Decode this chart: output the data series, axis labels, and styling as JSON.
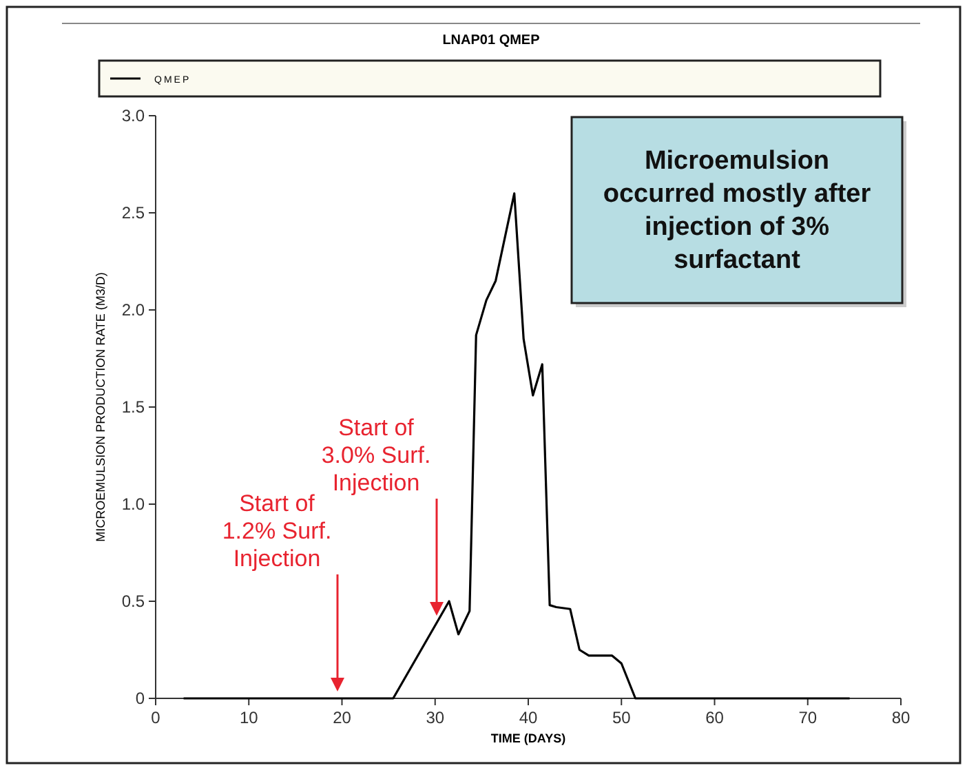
{
  "chart_data": {
    "type": "line",
    "title": "LNAP01 QMEP",
    "xlabel": "TIME (DAYS)",
    "ylabel": "MICROEMULSION PRODUCTION RATE (M3/D)",
    "xlim": [
      0,
      80
    ],
    "xticks": [
      0,
      10,
      20,
      30,
      40,
      50,
      60,
      70,
      80
    ],
    "ylim": [
      0,
      3
    ],
    "yticks": [
      0,
      0.5,
      {
        "value": 1,
        "label": "1.0"
      },
      1.5,
      {
        "value": 2,
        "label": "2.0"
      },
      2.5,
      {
        "value": 3,
        "label": "3.0"
      }
    ],
    "legend": "top",
    "grid": false,
    "series": [
      {
        "name": "QMEP",
        "color": "#000000",
        "x": [
          3,
          25.5,
          31.5,
          32.5,
          33.7,
          34.4,
          35.5,
          36.5,
          38.5,
          39.5,
          40.5,
          41.5,
          42.3,
          43,
          44.5,
          45.5,
          46.5,
          49,
          50,
          51.5,
          74.5
        ],
        "values": [
          0,
          0,
          0.5,
          0.33,
          0.45,
          1.87,
          2.05,
          2.15,
          2.6,
          1.85,
          1.56,
          1.72,
          0.48,
          0.47,
          0.46,
          0.25,
          0.22,
          0.22,
          0.18,
          0,
          0
        ]
      }
    ],
    "annotations": [
      "Microemulsion occurred mostly after injection of 3% surfactant",
      "Start of 1.2% Surf. Injection",
      "Start of 3.0% Surf. Injection"
    ]
  }
}
